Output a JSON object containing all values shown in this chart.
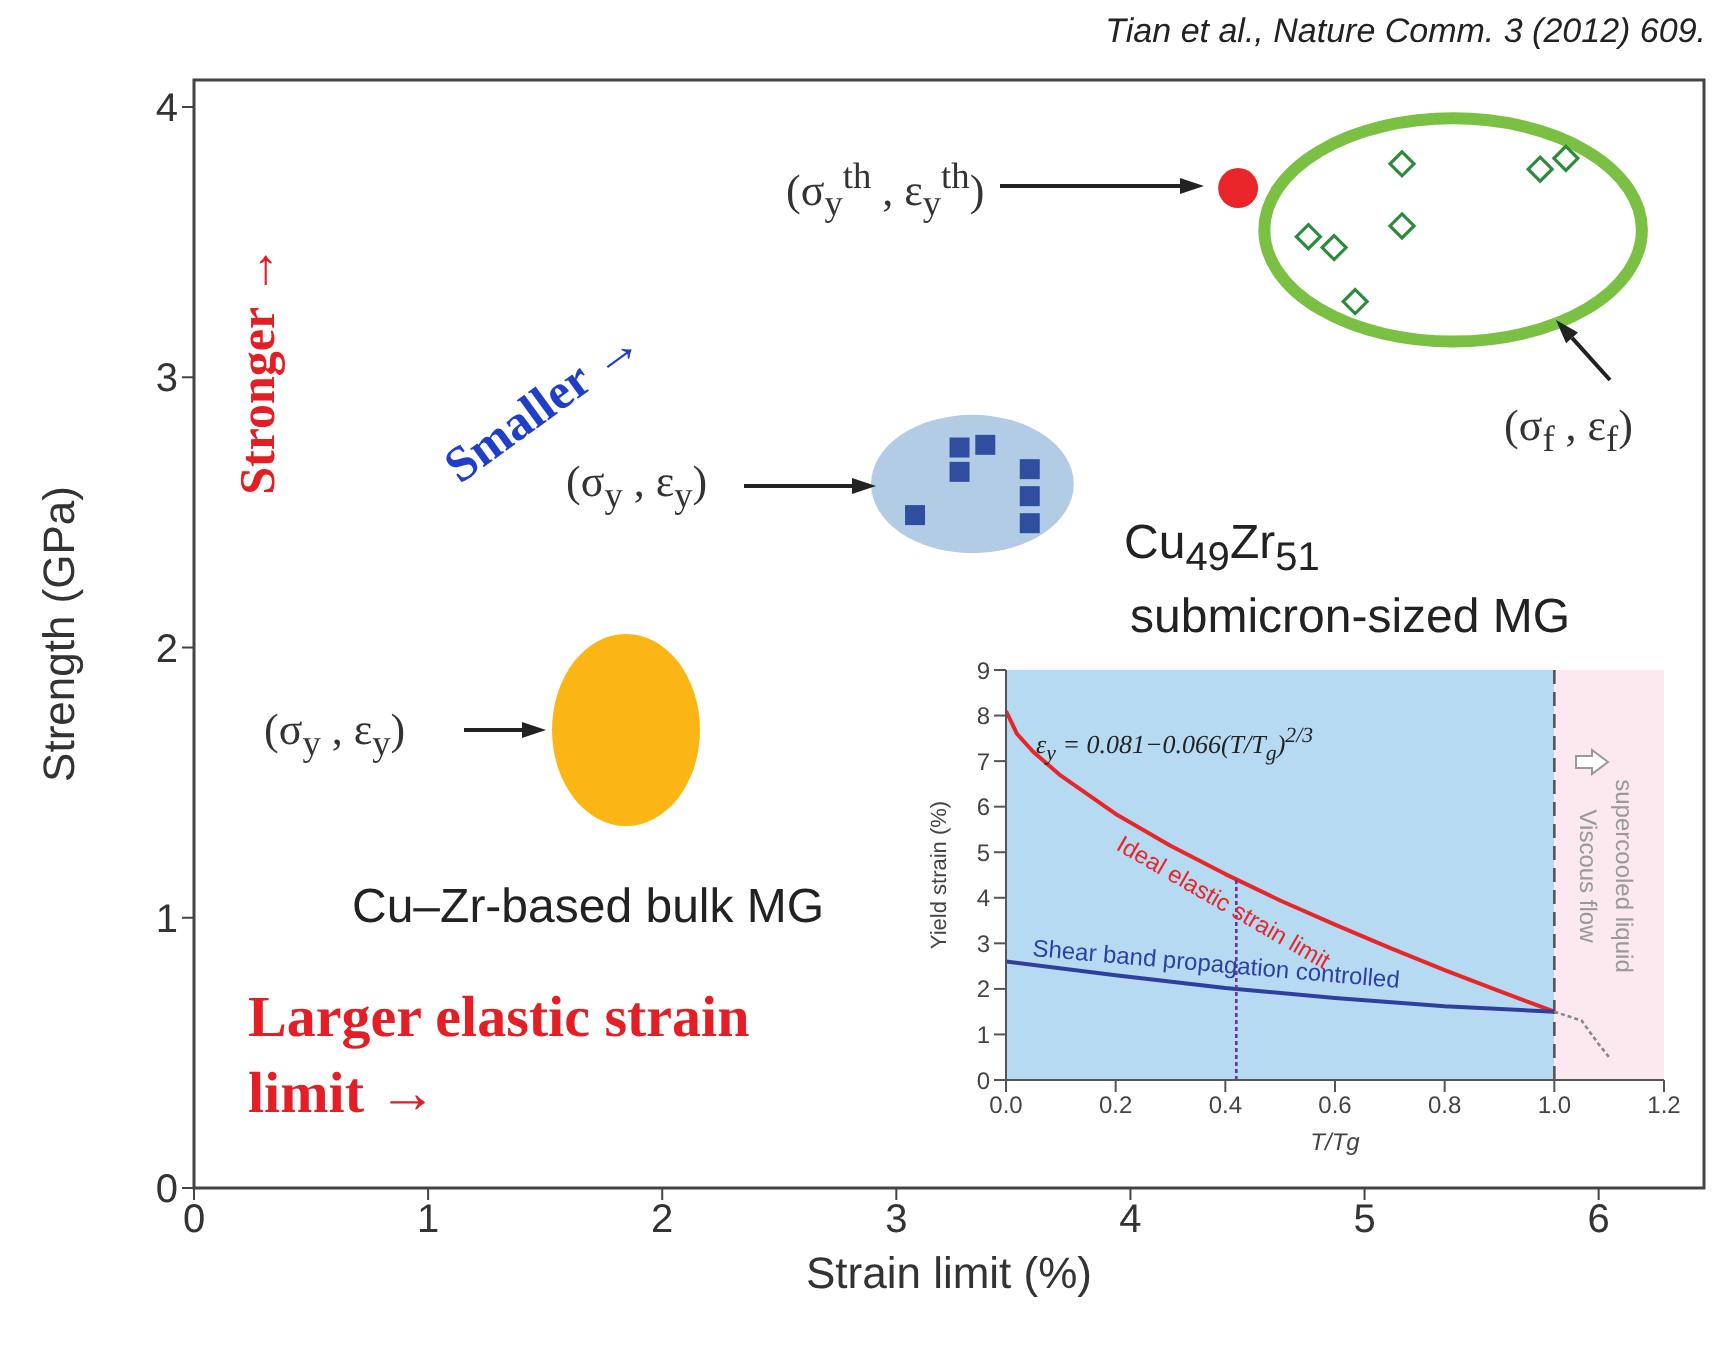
{
  "chart_data": [
    {
      "type": "scatter",
      "xlabel": "Strain limit (%)",
      "ylabel": "Strength (GPa)",
      "xlim": [
        0,
        6.45
      ],
      "ylim": [
        0,
        4.1
      ],
      "xticks": [
        0,
        1,
        2,
        3,
        4,
        5,
        6
      ],
      "yticks": [
        0,
        1,
        2,
        3,
        4
      ],
      "series": [
        {
          "color": "#e8262a",
          "marker": "circle",
          "x": [
            4.46
          ],
          "values": [
            3.7
          ]
        },
        {
          "color": "#2e8b3e",
          "marker": "diamond",
          "x": [
            4.76,
            4.87,
            5.16,
            5.16,
            4.96,
            5.75,
            5.86
          ],
          "values": [
            3.52,
            3.48,
            3.79,
            3.56,
            3.28,
            3.77,
            3.81
          ]
        },
        {
          "color": "#2f4ea0",
          "marker": "square",
          "x": [
            3.08,
            3.27,
            3.27,
            3.38,
            3.57,
            3.57,
            3.57
          ],
          "values": [
            2.49,
            2.74,
            2.65,
            2.75,
            2.66,
            2.56,
            2.46
          ]
        }
      ],
      "annotations": [
        "Tian et al., Nature Comm. 3 (2012) 609.",
        "(σ$_{y}$$^{th}$ , ε$_{y}$$^{th}$)",
        "(σ$_{f}$ , ε$_{f}$)",
        "(σ$_{y}$ , ε$_{y}$)",
        "(σ$_{y}$ , ε$_{y}$)",
        "Stronger →",
        "Smaller →",
        "Larger elastic strain limit →",
        "Cu$_{49}$Zr$_{51}$",
        "submicron-sized MG",
        "Cu–Zr-based bulk MG"
      ]
    },
    {
      "type": "line",
      "xlabel": "T/Tg",
      "ylabel": "Yield strain (%)",
      "xlim": [
        0,
        1.2
      ],
      "ylim": [
        0,
        9
      ],
      "xticks": [
        {
          "value": 0,
          "label": "0.0"
        },
        {
          "value": 0.2,
          "label": "0.2"
        },
        {
          "value": 0.4,
          "label": "0.4"
        },
        {
          "value": 0.6,
          "label": "0.6"
        },
        {
          "value": 0.8,
          "label": "0.8"
        },
        {
          "value": 1,
          "label": "1.0"
        },
        {
          "value": 1.2,
          "label": "1.2"
        }
      ],
      "yticks": [
        0,
        1,
        2,
        3,
        4,
        5,
        6,
        7,
        8,
        9
      ],
      "marker": "none",
      "series": [
        {
          "name": "Ideal elastic strain limit",
          "color": "#e8262a",
          "line_style": "solid",
          "x": [
            0,
            0.02,
            0.05,
            0.1,
            0.2,
            0.3,
            0.4,
            0.5,
            0.6,
            0.7,
            0.8,
            0.9,
            1
          ],
          "values": [
            8.1,
            7.6,
            7.2,
            6.68,
            5.84,
            5.14,
            4.52,
            3.94,
            3.41,
            2.9,
            2.41,
            1.95,
            1.5
          ]
        },
        {
          "name": "Shear band propagation controlled",
          "color": "#2f3f9f",
          "line_style": "solid",
          "x": [
            0,
            0.2,
            0.4,
            0.6,
            0.8,
            1
          ],
          "values": [
            2.6,
            2.3,
            2.02,
            1.8,
            1.62,
            1.5
          ]
        },
        {
          "color": "#888888",
          "line_style": "dotted",
          "x": [
            1,
            1.05,
            1.08,
            1.1
          ],
          "values": [
            1.5,
            1.3,
            0.8,
            0.5
          ]
        },
        {
          "color": "#7030a0",
          "line_style": "dotted",
          "x": [
            0.42,
            0.42
          ],
          "values": [
            0,
            4.4
          ]
        }
      ],
      "ref_lines": [
        {
          "axis": "x",
          "value": 1,
          "color": "#555555",
          "line_style": "dashed"
        }
      ],
      "bands": [
        {
          "axis": "x",
          "from": 0,
          "to": 1,
          "color": "#b5daf2"
        },
        {
          "axis": "x",
          "from": 1,
          "to": 1.2,
          "color": "#fbe9ef"
        }
      ],
      "annotations": [
        "ε$_{y}$ = 0.081−0.066(T/T$_{g}$)$^{2/3}$",
        "Viscous flow",
        "supercooled liquid"
      ]
    }
  ]
}
